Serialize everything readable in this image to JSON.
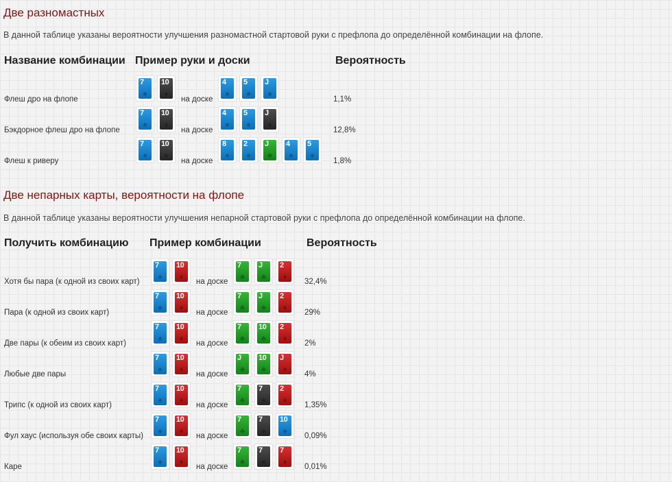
{
  "section1": {
    "title": "Две разномастных",
    "description": "В данной таблице указаны вероятности улучшения разномастной стартовой руки с префлопа до определённой комбинации на флопе.",
    "headers": [
      "Название комбинации",
      "Пример руки и доски",
      "Вероятность"
    ],
    "rows": [
      {
        "label": "Флеш дро на флопе",
        "hand": [
          {
            "rank": "7",
            "color": "blue"
          },
          {
            "rank": "10",
            "color": "black"
          }
        ],
        "on_board": "на доске",
        "board": [
          {
            "rank": "4",
            "color": "blue"
          },
          {
            "rank": "5",
            "color": "blue"
          },
          {
            "rank": "J",
            "color": "blue"
          }
        ],
        "probability": "1,1%"
      },
      {
        "label": "Бэкдорное флеш дро на флопе",
        "hand": [
          {
            "rank": "7",
            "color": "blue"
          },
          {
            "rank": "10",
            "color": "black"
          }
        ],
        "on_board": "на доске",
        "board": [
          {
            "rank": "4",
            "color": "blue"
          },
          {
            "rank": "5",
            "color": "blue"
          },
          {
            "rank": "J",
            "color": "black"
          }
        ],
        "probability": "12,8%"
      },
      {
        "label": "Флеш к риверу",
        "hand": [
          {
            "rank": "7",
            "color": "blue"
          },
          {
            "rank": "10",
            "color": "black"
          }
        ],
        "on_board": "на доске",
        "board": [
          {
            "rank": "8",
            "color": "blue"
          },
          {
            "rank": "2",
            "color": "blue"
          },
          {
            "rank": "J",
            "color": "green"
          },
          {
            "rank": "4",
            "color": "blue"
          },
          {
            "rank": "5",
            "color": "blue"
          }
        ],
        "probability": "1,8%"
      }
    ]
  },
  "section2": {
    "title": "Две непарных карты, вероятности на флопе",
    "description": "В данной таблице указаны вероятности улучшения непарной стартовой руки с префлопа до определённой комбинации на флопе.",
    "headers": [
      "Получить комбинацию",
      "Пример комбинации",
      "Вероятность"
    ],
    "rows": [
      {
        "label": "Хотя бы пара (к одной из своих карт)",
        "hand": [
          {
            "rank": "7",
            "color": "blue"
          },
          {
            "rank": "10",
            "color": "red"
          }
        ],
        "on_board": "на доске",
        "board": [
          {
            "rank": "7",
            "color": "green"
          },
          {
            "rank": "J",
            "color": "green"
          },
          {
            "rank": "2",
            "color": "red"
          }
        ],
        "probability": "32,4%"
      },
      {
        "label": "Пара (к одной из своих карт)",
        "hand": [
          {
            "rank": "7",
            "color": "blue"
          },
          {
            "rank": "10",
            "color": "red"
          }
        ],
        "on_board": "на доске",
        "board": [
          {
            "rank": "7",
            "color": "green"
          },
          {
            "rank": "J",
            "color": "green"
          },
          {
            "rank": "2",
            "color": "red"
          }
        ],
        "probability": "29%"
      },
      {
        "label": "Две пары (к обеим из своих карт)",
        "hand": [
          {
            "rank": "7",
            "color": "blue"
          },
          {
            "rank": "10",
            "color": "red"
          }
        ],
        "on_board": "на доске",
        "board": [
          {
            "rank": "7",
            "color": "green"
          },
          {
            "rank": "10",
            "color": "green"
          },
          {
            "rank": "2",
            "color": "red"
          }
        ],
        "probability": "2%"
      },
      {
        "label": "Любые две пары",
        "hand": [
          {
            "rank": "7",
            "color": "blue"
          },
          {
            "rank": "10",
            "color": "red"
          }
        ],
        "on_board": "на доске",
        "board": [
          {
            "rank": "J",
            "color": "green"
          },
          {
            "rank": "10",
            "color": "green"
          },
          {
            "rank": "J",
            "color": "red"
          }
        ],
        "probability": "4%"
      },
      {
        "label": "Трипс (к одной из своих карт)",
        "hand": [
          {
            "rank": "7",
            "color": "blue"
          },
          {
            "rank": "10",
            "color": "red"
          }
        ],
        "on_board": "на доске",
        "board": [
          {
            "rank": "7",
            "color": "green"
          },
          {
            "rank": "7",
            "color": "black"
          },
          {
            "rank": "2",
            "color": "red"
          }
        ],
        "probability": "1,35%"
      },
      {
        "label": "Фул хаус (используя обе своих карты)",
        "hand": [
          {
            "rank": "7",
            "color": "blue"
          },
          {
            "rank": "10",
            "color": "red"
          }
        ],
        "on_board": "на доске",
        "board": [
          {
            "rank": "7",
            "color": "green"
          },
          {
            "rank": "7",
            "color": "black"
          },
          {
            "rank": "10",
            "color": "blue"
          }
        ],
        "probability": "0,09%"
      },
      {
        "label": "Каре",
        "hand": [
          {
            "rank": "7",
            "color": "blue"
          },
          {
            "rank": "10",
            "color": "red"
          }
        ],
        "on_board": "на доске",
        "board": [
          {
            "rank": "7",
            "color": "green"
          },
          {
            "rank": "7",
            "color": "black"
          },
          {
            "rank": "7",
            "color": "red"
          }
        ],
        "probability": "0,01%"
      }
    ]
  },
  "colors": {
    "title": "#8a1212",
    "card_blue": "#1783cc",
    "card_black": "#3a3a3a",
    "card_green": "#22a026",
    "card_red": "#c21d1d"
  }
}
